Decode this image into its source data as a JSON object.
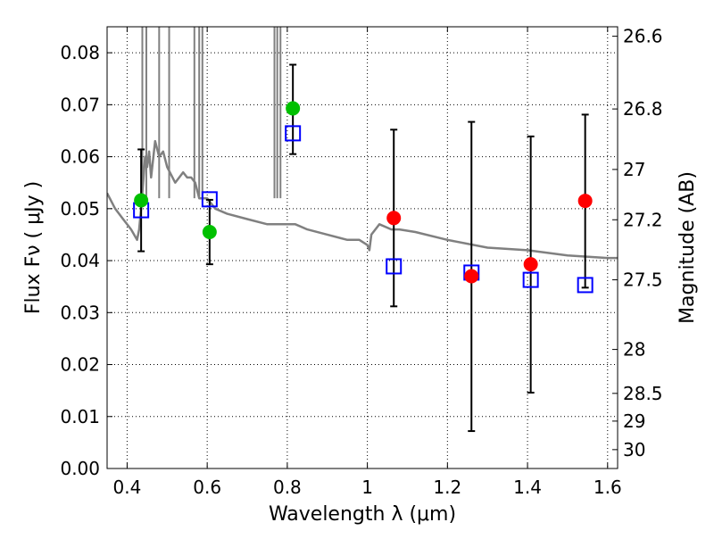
{
  "chart_data": {
    "type": "scatter",
    "xlabel": "Wavelength  λ (μm)",
    "ylabel": "Flux  Fν  ( μJy )",
    "y2label": "Magnitude (AB)",
    "xlim": [
      0.35,
      1.625
    ],
    "ylim": [
      0.0,
      0.085
    ],
    "grid": true,
    "x_ticks": [
      0.4,
      0.6,
      0.8,
      1.0,
      1.2,
      1.4,
      1.6
    ],
    "x_tick_labels": [
      "0.4",
      "0.6",
      "0.8",
      "1",
      "1.2",
      "1.4",
      "1.6"
    ],
    "y_ticks": [
      0.0,
      0.01,
      0.02,
      0.03,
      0.04,
      0.05,
      0.06,
      0.07,
      0.08
    ],
    "y_tick_labels": [
      "0.00",
      "0.01",
      "0.02",
      "0.03",
      "0.04",
      "0.05",
      "0.06",
      "0.07",
      "0.08"
    ],
    "y2_ticks": [
      26.6,
      26.8,
      27.0,
      27.2,
      27.5,
      28.0,
      28.5,
      29.0,
      30.0
    ],
    "y2_tick_labels": [
      "26.6",
      "26.8",
      "27",
      "27.2",
      "27.5",
      "28",
      "28.5",
      "29",
      "30"
    ],
    "series": [
      {
        "kind": "spectrum",
        "color": "#808080",
        "x": [
          0.35,
          0.37,
          0.39,
          0.41,
          0.425,
          0.43,
          0.435,
          0.44,
          0.445,
          0.45,
          0.455,
          0.46,
          0.47,
          0.48,
          0.49,
          0.5,
          0.52,
          0.54,
          0.55,
          0.56,
          0.57,
          0.58,
          0.6,
          0.62,
          0.65,
          0.7,
          0.75,
          0.8,
          0.82,
          0.85,
          0.9,
          0.95,
          0.98,
          1.0,
          1.005,
          1.01,
          1.03,
          1.06,
          1.08,
          1.12,
          1.2,
          1.3,
          1.4,
          1.5,
          1.6,
          1.625
        ],
        "y": [
          0.053,
          0.05,
          0.048,
          0.046,
          0.044,
          0.046,
          0.05,
          0.055,
          0.06,
          0.058,
          0.061,
          0.056,
          0.063,
          0.06,
          0.061,
          0.058,
          0.055,
          0.057,
          0.056,
          0.056,
          0.055,
          0.052,
          0.052,
          0.05,
          0.049,
          0.048,
          0.047,
          0.047,
          0.047,
          0.046,
          0.045,
          0.044,
          0.044,
          0.043,
          0.042,
          0.045,
          0.047,
          0.046,
          0.046,
          0.0455,
          0.044,
          0.0425,
          0.042,
          0.041,
          0.0405,
          0.0405
        ]
      },
      {
        "kind": "spikes",
        "color": "#808080",
        "x": [
          0.438,
          0.448,
          0.48,
          0.505,
          0.568,
          0.58,
          0.588,
          0.768,
          0.775,
          0.783
        ]
      },
      {
        "kind": "observed",
        "marker": "circle",
        "x": [
          0.435,
          0.606,
          0.814,
          1.066,
          1.26,
          1.408,
          1.544
        ],
        "y": [
          0.0516,
          0.0455,
          0.0693,
          0.0482,
          0.037,
          0.0393,
          0.0515
        ],
        "colors": [
          "#00c000",
          "#00c000",
          "#00c000",
          "#ff0000",
          "#ff0000",
          "#ff0000",
          "#ff0000"
        ]
      },
      {
        "kind": "model",
        "marker": "square",
        "color": "#0000ff",
        "x": [
          0.435,
          0.606,
          0.814,
          1.066,
          1.26,
          1.408,
          1.544
        ],
        "y": [
          0.0497,
          0.0518,
          0.0645,
          0.0389,
          0.0377,
          0.0363,
          0.0353
        ]
      },
      {
        "kind": "errorbar",
        "color": "#000000",
        "x": [
          0.435,
          0.606,
          0.814,
          1.066,
          1.26,
          1.408,
          1.544
        ],
        "y_low": [
          0.0418,
          0.0393,
          0.0605,
          0.0312,
          0.0072,
          0.0146,
          0.0348
        ],
        "y_high": [
          0.0614,
          0.0517,
          0.0777,
          0.0652,
          0.0667,
          0.0639,
          0.0681
        ]
      }
    ]
  }
}
